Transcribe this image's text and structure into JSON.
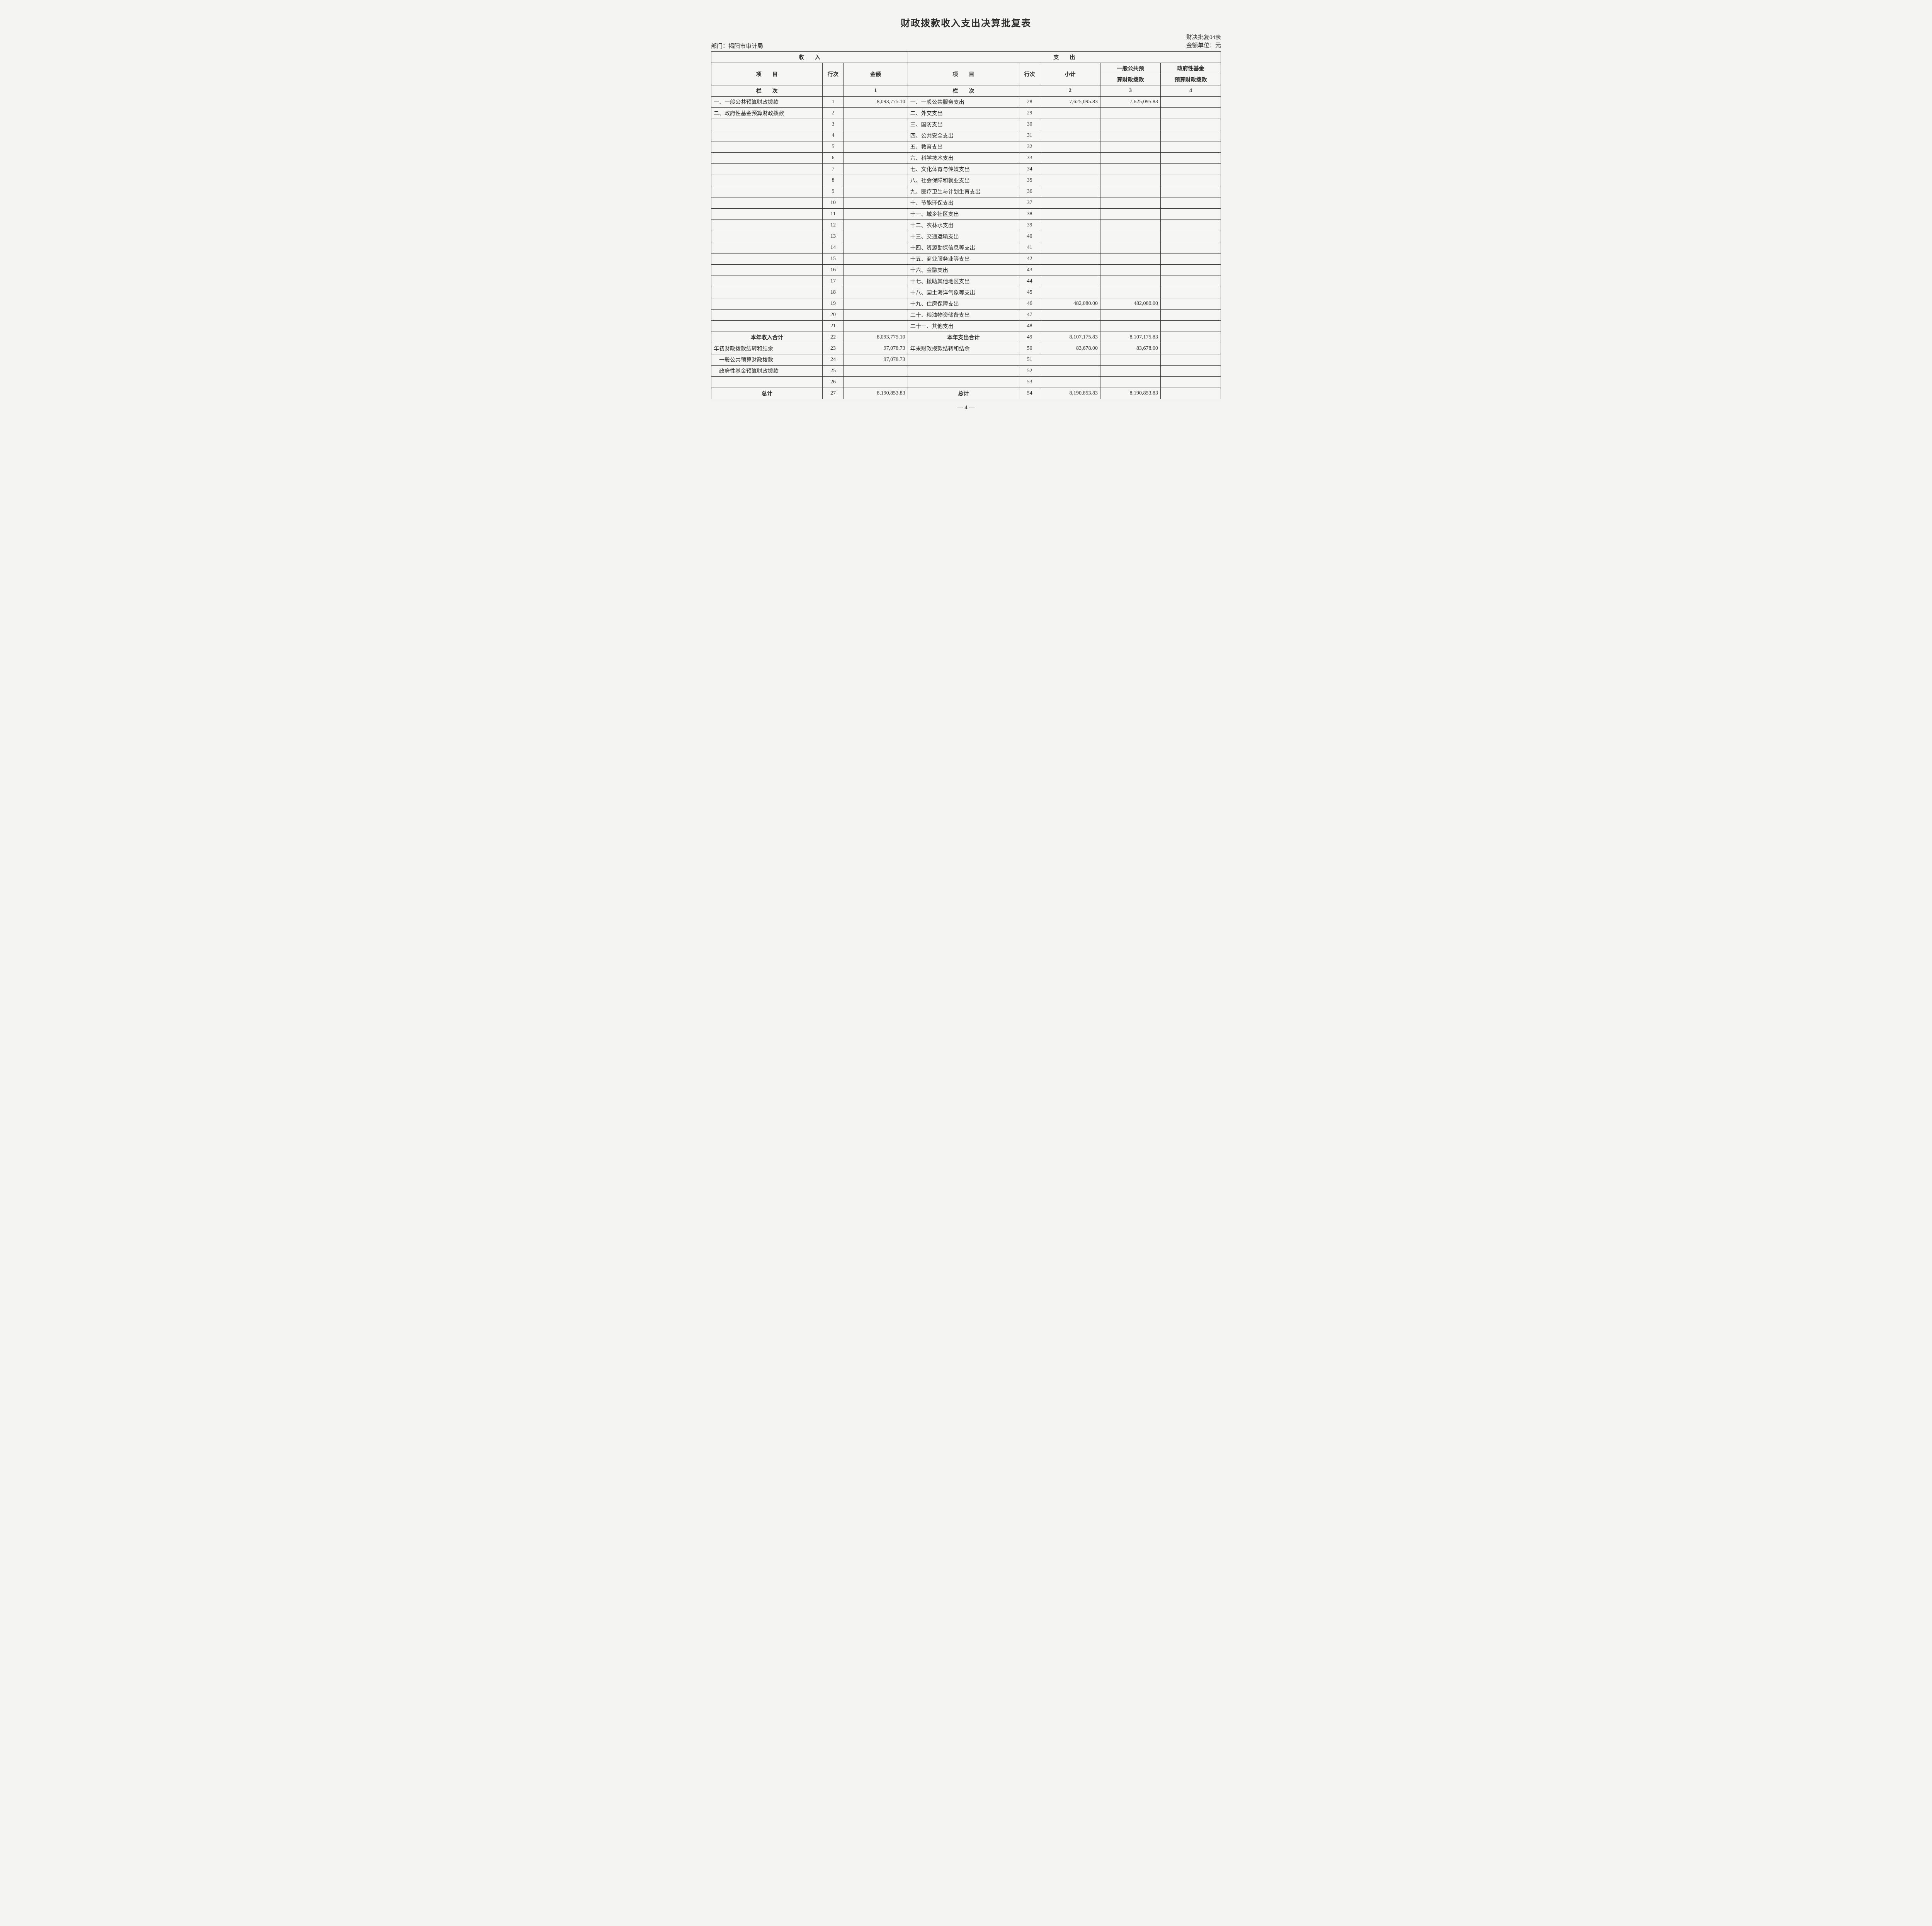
{
  "title": "财政拨款收入支出决算批复表",
  "dept_label": "部门：",
  "dept_name": "揭阳市审计局",
  "form_code": "财决批复04表",
  "unit_label": "金额单位：元",
  "top_headers": {
    "income": "收　　入",
    "expense": "支　　出",
    "item": "项　　目",
    "line": "行次",
    "amount": "金额",
    "subtotal": "小计",
    "col3a": "一般公共预",
    "col3b": "算财政拨款",
    "col4a": "政府性基金",
    "col4b": "预算财政拨款",
    "lanci": "栏　　次",
    "n1": "1",
    "n2": "2",
    "n3": "3",
    "n4": "4"
  },
  "rows": [
    {
      "in_item": "一、一般公共预算财政拨款",
      "in_line": "1",
      "in_amt": "8,093,775.10",
      "out_item": "一、一般公共服务支出",
      "out_line": "28",
      "sub": "7,625,095.83",
      "c3": "7,625,095.83",
      "c4": ""
    },
    {
      "in_item": "二、政府性基金预算财政拨款",
      "in_line": "2",
      "in_amt": "",
      "out_item": "二、外交支出",
      "out_line": "29",
      "sub": "",
      "c3": "",
      "c4": ""
    },
    {
      "in_item": "",
      "in_line": "3",
      "in_amt": "",
      "out_item": "三、国防支出",
      "out_line": "30",
      "sub": "",
      "c3": "",
      "c4": ""
    },
    {
      "in_item": "",
      "in_line": "4",
      "in_amt": "",
      "out_item": "四、公共安全支出",
      "out_line": "31",
      "sub": "",
      "c3": "",
      "c4": ""
    },
    {
      "in_item": "",
      "in_line": "5",
      "in_amt": "",
      "out_item": "五、教育支出",
      "out_line": "32",
      "sub": "",
      "c3": "",
      "c4": ""
    },
    {
      "in_item": "",
      "in_line": "6",
      "in_amt": "",
      "out_item": "六、科学技术支出",
      "out_line": "33",
      "sub": "",
      "c3": "",
      "c4": ""
    },
    {
      "in_item": "",
      "in_line": "7",
      "in_amt": "",
      "out_item": "七、文化体育与传媒支出",
      "out_line": "34",
      "sub": "",
      "c3": "",
      "c4": ""
    },
    {
      "in_item": "",
      "in_line": "8",
      "in_amt": "",
      "out_item": "八、社会保障和就业支出",
      "out_line": "35",
      "sub": "",
      "c3": "",
      "c4": ""
    },
    {
      "in_item": "",
      "in_line": "9",
      "in_amt": "",
      "out_item": "九、医疗卫生与计划生育支出",
      "out_line": "36",
      "sub": "",
      "c3": "",
      "c4": ""
    },
    {
      "in_item": "",
      "in_line": "10",
      "in_amt": "",
      "out_item": "十、节能环保支出",
      "out_line": "37",
      "sub": "",
      "c3": "",
      "c4": ""
    },
    {
      "in_item": "",
      "in_line": "11",
      "in_amt": "",
      "out_item": "十一、城乡社区支出",
      "out_line": "38",
      "sub": "",
      "c3": "",
      "c4": ""
    },
    {
      "in_item": "",
      "in_line": "12",
      "in_amt": "",
      "out_item": "十二、农林水支出",
      "out_line": "39",
      "sub": "",
      "c3": "",
      "c4": ""
    },
    {
      "in_item": "",
      "in_line": "13",
      "in_amt": "",
      "out_item": "十三、交通运输支出",
      "out_line": "40",
      "sub": "",
      "c3": "",
      "c4": ""
    },
    {
      "in_item": "",
      "in_line": "14",
      "in_amt": "",
      "out_item": "十四、资源勘探信息等支出",
      "out_line": "41",
      "sub": "",
      "c3": "",
      "c4": ""
    },
    {
      "in_item": "",
      "in_line": "15",
      "in_amt": "",
      "out_item": "十五、商业服务业等支出",
      "out_line": "42",
      "sub": "",
      "c3": "",
      "c4": ""
    },
    {
      "in_item": "",
      "in_line": "16",
      "in_amt": "",
      "out_item": "十六、金融支出",
      "out_line": "43",
      "sub": "",
      "c3": "",
      "c4": ""
    },
    {
      "in_item": "",
      "in_line": "17",
      "in_amt": "",
      "out_item": "十七、援助其他地区支出",
      "out_line": "44",
      "sub": "",
      "c3": "",
      "c4": ""
    },
    {
      "in_item": "",
      "in_line": "18",
      "in_amt": "",
      "out_item": "十八、国土海洋气象等支出",
      "out_line": "45",
      "sub": "",
      "c3": "",
      "c4": ""
    },
    {
      "in_item": "",
      "in_line": "19",
      "in_amt": "",
      "out_item": "十九、住房保障支出",
      "out_line": "46",
      "sub": "482,080.00",
      "c3": "482,080.00",
      "c4": ""
    },
    {
      "in_item": "",
      "in_line": "20",
      "in_amt": "",
      "out_item": "二十、粮油物资储备支出",
      "out_line": "47",
      "sub": "",
      "c3": "",
      "c4": ""
    },
    {
      "in_item": "",
      "in_line": "21",
      "in_amt": "",
      "out_item": "二十一、其他支出",
      "out_line": "48",
      "sub": "",
      "c3": "",
      "c4": ""
    },
    {
      "in_item": "本年收入合计",
      "in_line": "22",
      "in_amt": "8,093,775.10",
      "out_item": "本年支出合计",
      "out_line": "49",
      "sub": "8,107,175.83",
      "c3": "8,107,175.83",
      "c4": "",
      "bold": true,
      "center": true
    },
    {
      "in_item": "年初财政拨款结转和结余",
      "in_line": "23",
      "in_amt": "97,078.73",
      "out_item": "年末财政拨款结转和结余",
      "out_line": "50",
      "sub": "83,678.00",
      "c3": "83,678.00",
      "c4": ""
    },
    {
      "in_item": "　一般公共预算财政拨款",
      "in_line": "24",
      "in_amt": "97,078.73",
      "out_item": "",
      "out_line": "51",
      "sub": "",
      "c3": "",
      "c4": ""
    },
    {
      "in_item": "　政府性基金预算财政拨款",
      "in_line": "25",
      "in_amt": "",
      "out_item": "",
      "out_line": "52",
      "sub": "",
      "c3": "",
      "c4": ""
    },
    {
      "in_item": "",
      "in_line": "26",
      "in_amt": "",
      "out_item": "",
      "out_line": "53",
      "sub": "",
      "c3": "",
      "c4": ""
    },
    {
      "in_item": "总计",
      "in_line": "27",
      "in_amt": "8,190,853.83",
      "out_item": "总计",
      "out_line": "54",
      "sub": "8,190,853.83",
      "c3": "8,190,853.83",
      "c4": "",
      "bold": true,
      "center": true
    }
  ],
  "page_number": "— 4 —"
}
